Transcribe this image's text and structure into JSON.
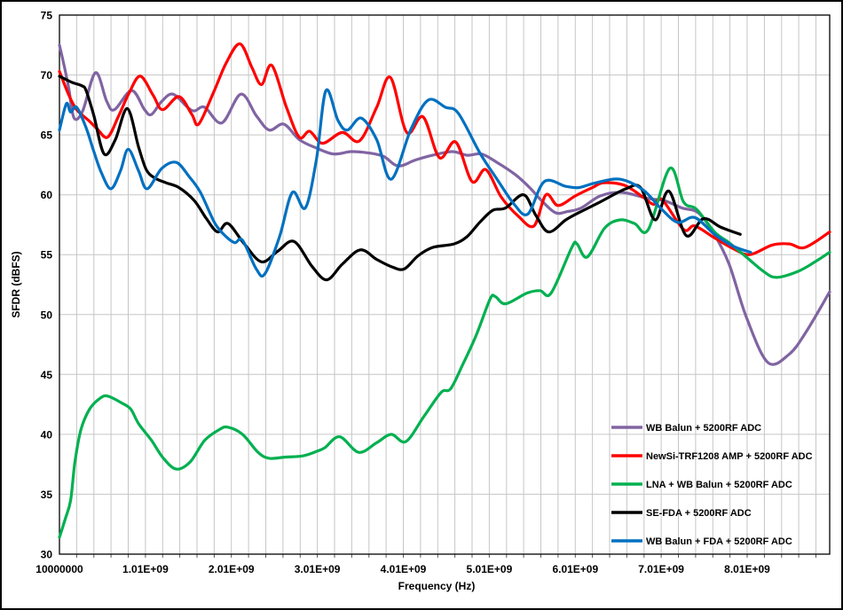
{
  "window": {
    "background": "#FFFFFF",
    "border_color": "#000000"
  },
  "chart_data": {
    "type": "line",
    "title": "",
    "xlabel": "Frequency (Hz)",
    "ylabel": "SFDR (dBFS)",
    "x_unit_of_points": "GHz",
    "xlim_ghz": [
      0.01,
      8.97
    ],
    "ylim": [
      30,
      75
    ],
    "y_ticks": [
      30,
      35,
      40,
      45,
      50,
      55,
      60,
      65,
      70,
      75
    ],
    "x_major_ticks": [
      {
        "value": 0.01,
        "label": "10000000"
      },
      {
        "value": 1.01,
        "label": "1.01E+09"
      },
      {
        "value": 2.01,
        "label": "2.01E+09"
      },
      {
        "value": 3.01,
        "label": "3.01E+09"
      },
      {
        "value": 4.01,
        "label": "4.01E+09"
      },
      {
        "value": 5.01,
        "label": "5.01E+09"
      },
      {
        "value": 6.01,
        "label": "6.01E+09"
      },
      {
        "value": 7.01,
        "label": "7.01E+09"
      },
      {
        "value": 8.01,
        "label": "8.01E+09"
      }
    ],
    "x_minor_step_ghz": 0.2,
    "grid_on": true,
    "grid_color": "#C6C6C6",
    "plot_border_color": "#000000",
    "legend_position": "inside-bottom-right",
    "line_width": 3.2,
    "series": [
      {
        "name": "WB Balun + 5200RF ADC",
        "color": "#8064A2",
        "points": [
          [
            0.01,
            72.5
          ],
          [
            0.07,
            70.6
          ],
          [
            0.12,
            68.8
          ],
          [
            0.18,
            66.4
          ],
          [
            0.28,
            67.0
          ],
          [
            0.43,
            70.2
          ],
          [
            0.56,
            67.8
          ],
          [
            0.65,
            67.1
          ],
          [
            0.85,
            68.7
          ],
          [
            1.0,
            67.1
          ],
          [
            1.08,
            66.7
          ],
          [
            1.2,
            67.8
          ],
          [
            1.33,
            68.4
          ],
          [
            1.5,
            67.3
          ],
          [
            1.58,
            67.0
          ],
          [
            1.7,
            67.3
          ],
          [
            1.9,
            66.0
          ],
          [
            2.12,
            68.4
          ],
          [
            2.3,
            66.6
          ],
          [
            2.45,
            65.4
          ],
          [
            2.62,
            65.9
          ],
          [
            2.8,
            64.6
          ],
          [
            3.0,
            63.9
          ],
          [
            3.2,
            63.4
          ],
          [
            3.4,
            63.6
          ],
          [
            3.6,
            63.5
          ],
          [
            3.78,
            63.2
          ],
          [
            3.95,
            62.4
          ],
          [
            4.15,
            62.9
          ],
          [
            4.35,
            63.3
          ],
          [
            4.58,
            63.6
          ],
          [
            4.75,
            63.3
          ],
          [
            4.92,
            63.4
          ],
          [
            5.1,
            62.7
          ],
          [
            5.31,
            61.7
          ],
          [
            5.48,
            60.6
          ],
          [
            5.62,
            59.5
          ],
          [
            5.78,
            58.5
          ],
          [
            5.92,
            58.6
          ],
          [
            6.08,
            58.9
          ],
          [
            6.3,
            59.9
          ],
          [
            6.55,
            60.2
          ],
          [
            6.85,
            59.7
          ],
          [
            7.05,
            59.5
          ],
          [
            7.25,
            58.9
          ],
          [
            7.44,
            58.5
          ],
          [
            7.62,
            56.8
          ],
          [
            7.8,
            54.2
          ],
          [
            8.0,
            49.8
          ],
          [
            8.25,
            46.0
          ],
          [
            8.5,
            46.7
          ],
          [
            8.7,
            48.6
          ],
          [
            8.97,
            51.9
          ]
        ]
      },
      {
        "name": "NewSi-TRF1208 AMP + 5200RF ADC",
        "color": "#FF0000",
        "points": [
          [
            0.01,
            70.3
          ],
          [
            0.12,
            68.3
          ],
          [
            0.21,
            67.1
          ],
          [
            0.35,
            66.2
          ],
          [
            0.45,
            65.5
          ],
          [
            0.57,
            64.8
          ],
          [
            0.7,
            66.6
          ],
          [
            0.82,
            68.5
          ],
          [
            0.95,
            69.9
          ],
          [
            1.1,
            68.3
          ],
          [
            1.21,
            67.1
          ],
          [
            1.4,
            68.2
          ],
          [
            1.55,
            66.7
          ],
          [
            1.63,
            65.9
          ],
          [
            1.8,
            68.5
          ],
          [
            1.95,
            71.0
          ],
          [
            2.11,
            72.6
          ],
          [
            2.25,
            70.6
          ],
          [
            2.36,
            69.2
          ],
          [
            2.48,
            70.8
          ],
          [
            2.65,
            67.3
          ],
          [
            2.8,
            64.8
          ],
          [
            2.92,
            65.3
          ],
          [
            3.07,
            64.3
          ],
          [
            3.3,
            65.2
          ],
          [
            3.5,
            64.5
          ],
          [
            3.7,
            67.3
          ],
          [
            3.86,
            69.8
          ],
          [
            4.05,
            65.2
          ],
          [
            4.24,
            66.5
          ],
          [
            4.43,
            63.1
          ],
          [
            4.62,
            64.4
          ],
          [
            4.81,
            61.1
          ],
          [
            4.97,
            62.1
          ],
          [
            5.15,
            59.8
          ],
          [
            5.35,
            58.2
          ],
          [
            5.53,
            57.4
          ],
          [
            5.67,
            60.0
          ],
          [
            5.81,
            59.1
          ],
          [
            6.01,
            59.9
          ],
          [
            6.21,
            60.6
          ],
          [
            6.34,
            61.0
          ],
          [
            6.58,
            60.8
          ],
          [
            6.8,
            59.8
          ],
          [
            6.92,
            59.2
          ],
          [
            7.02,
            59.6
          ],
          [
            7.27,
            57.1
          ],
          [
            7.4,
            57.4
          ],
          [
            7.63,
            56.4
          ],
          [
            7.85,
            55.5
          ],
          [
            8.04,
            55.0
          ],
          [
            8.3,
            55.8
          ],
          [
            8.5,
            55.9
          ],
          [
            8.68,
            55.6
          ],
          [
            8.97,
            56.9
          ]
        ]
      },
      {
        "name": "LNA + WB Balun + 5200RF ADC",
        "color": "#00B050",
        "points": [
          [
            0.01,
            31.4
          ],
          [
            0.08,
            33.0
          ],
          [
            0.14,
            34.5
          ],
          [
            0.19,
            37.7
          ],
          [
            0.26,
            40.4
          ],
          [
            0.36,
            42.1
          ],
          [
            0.48,
            43.0
          ],
          [
            0.57,
            43.2
          ],
          [
            0.74,
            42.6
          ],
          [
            0.84,
            42.1
          ],
          [
            0.93,
            40.9
          ],
          [
            1.08,
            39.5
          ],
          [
            1.22,
            38.0
          ],
          [
            1.37,
            37.1
          ],
          [
            1.53,
            37.7
          ],
          [
            1.7,
            39.5
          ],
          [
            1.87,
            40.4
          ],
          [
            1.97,
            40.6
          ],
          [
            2.14,
            40.0
          ],
          [
            2.32,
            38.5
          ],
          [
            2.45,
            38.0
          ],
          [
            2.63,
            38.1
          ],
          [
            2.84,
            38.2
          ],
          [
            3.01,
            38.6
          ],
          [
            3.1,
            38.9
          ],
          [
            3.27,
            39.8
          ],
          [
            3.49,
            38.5
          ],
          [
            3.7,
            39.3
          ],
          [
            3.87,
            40.0
          ],
          [
            4.04,
            39.4
          ],
          [
            4.25,
            41.5
          ],
          [
            4.45,
            43.5
          ],
          [
            4.56,
            43.8
          ],
          [
            4.7,
            45.8
          ],
          [
            4.86,
            48.3
          ],
          [
            5.02,
            51.3
          ],
          [
            5.08,
            51.5
          ],
          [
            5.2,
            50.9
          ],
          [
            5.45,
            51.8
          ],
          [
            5.6,
            52.0
          ],
          [
            5.73,
            51.8
          ],
          [
            5.97,
            55.6
          ],
          [
            6.03,
            55.9
          ],
          [
            6.15,
            54.8
          ],
          [
            6.35,
            57.2
          ],
          [
            6.53,
            57.9
          ],
          [
            6.7,
            57.6
          ],
          [
            6.86,
            57.1
          ],
          [
            7.11,
            62.2
          ],
          [
            7.27,
            59.4
          ],
          [
            7.42,
            58.8
          ],
          [
            7.63,
            56.9
          ],
          [
            7.8,
            56.0
          ],
          [
            8.0,
            54.8
          ],
          [
            8.2,
            53.6
          ],
          [
            8.35,
            53.1
          ],
          [
            8.6,
            53.6
          ],
          [
            8.8,
            54.4
          ],
          [
            8.97,
            55.2
          ]
        ]
      },
      {
        "name": "SE-FDA + 5200RF ADC",
        "color": "#000000",
        "points": [
          [
            0.01,
            69.9
          ],
          [
            0.15,
            69.4
          ],
          [
            0.27,
            69.1
          ],
          [
            0.32,
            68.7
          ],
          [
            0.41,
            66.6
          ],
          [
            0.53,
            63.4
          ],
          [
            0.66,
            64.6
          ],
          [
            0.8,
            67.2
          ],
          [
            0.93,
            64.0
          ],
          [
            1.02,
            62.1
          ],
          [
            1.12,
            61.4
          ],
          [
            1.25,
            61.0
          ],
          [
            1.4,
            60.6
          ],
          [
            1.58,
            59.5
          ],
          [
            1.72,
            58.0
          ],
          [
            1.85,
            56.9
          ],
          [
            1.97,
            57.6
          ],
          [
            2.16,
            55.9
          ],
          [
            2.36,
            54.4
          ],
          [
            2.55,
            55.3
          ],
          [
            2.74,
            56.1
          ],
          [
            2.95,
            54.0
          ],
          [
            3.12,
            52.9
          ],
          [
            3.3,
            54.2
          ],
          [
            3.51,
            55.4
          ],
          [
            3.7,
            54.6
          ],
          [
            3.87,
            54.0
          ],
          [
            4.02,
            53.8
          ],
          [
            4.18,
            54.9
          ],
          [
            4.35,
            55.6
          ],
          [
            4.6,
            55.9
          ],
          [
            4.75,
            56.5
          ],
          [
            4.9,
            57.7
          ],
          [
            5.05,
            58.7
          ],
          [
            5.2,
            58.9
          ],
          [
            5.41,
            60.0
          ],
          [
            5.55,
            58.3
          ],
          [
            5.7,
            56.9
          ],
          [
            5.9,
            57.9
          ],
          [
            6.05,
            58.5
          ],
          [
            6.3,
            59.4
          ],
          [
            6.6,
            60.5
          ],
          [
            6.77,
            60.6
          ],
          [
            6.94,
            57.9
          ],
          [
            7.1,
            60.3
          ],
          [
            7.3,
            56.6
          ],
          [
            7.5,
            58.0
          ],
          [
            7.7,
            57.3
          ],
          [
            7.93,
            56.7
          ]
        ]
      },
      {
        "name": "WB Balun + FDA + 5200RF ADC",
        "color": "#0070C0",
        "points": [
          [
            0.01,
            65.4
          ],
          [
            0.09,
            67.6
          ],
          [
            0.14,
            66.9
          ],
          [
            0.21,
            67.3
          ],
          [
            0.32,
            65.6
          ],
          [
            0.41,
            63.6
          ],
          [
            0.5,
            61.8
          ],
          [
            0.61,
            60.5
          ],
          [
            0.72,
            62.0
          ],
          [
            0.81,
            63.8
          ],
          [
            0.93,
            62.0
          ],
          [
            1.03,
            60.5
          ],
          [
            1.2,
            62.2
          ],
          [
            1.37,
            62.7
          ],
          [
            1.52,
            61.5
          ],
          [
            1.65,
            60.2
          ],
          [
            1.82,
            57.6
          ],
          [
            1.95,
            56.5
          ],
          [
            2.05,
            56.0
          ],
          [
            2.14,
            56.2
          ],
          [
            2.3,
            53.8
          ],
          [
            2.4,
            53.4
          ],
          [
            2.57,
            56.5
          ],
          [
            2.72,
            60.2
          ],
          [
            2.87,
            58.9
          ],
          [
            3.0,
            63.0
          ],
          [
            3.11,
            68.7
          ],
          [
            3.25,
            66.2
          ],
          [
            3.36,
            65.4
          ],
          [
            3.52,
            66.4
          ],
          [
            3.7,
            64.6
          ],
          [
            3.87,
            61.3
          ],
          [
            4.1,
            65.5
          ],
          [
            4.3,
            67.9
          ],
          [
            4.5,
            67.3
          ],
          [
            4.65,
            66.8
          ],
          [
            4.9,
            63.5
          ],
          [
            5.1,
            61.3
          ],
          [
            5.3,
            59.2
          ],
          [
            5.46,
            58.4
          ],
          [
            5.65,
            61.1
          ],
          [
            5.9,
            60.7
          ],
          [
            6.05,
            60.6
          ],
          [
            6.25,
            61.0
          ],
          [
            6.53,
            61.3
          ],
          [
            6.8,
            60.4
          ],
          [
            7.0,
            58.9
          ],
          [
            7.2,
            57.7
          ],
          [
            7.4,
            58.1
          ],
          [
            7.63,
            56.7
          ],
          [
            7.85,
            55.7
          ],
          [
            8.05,
            55.2
          ]
        ]
      }
    ]
  }
}
